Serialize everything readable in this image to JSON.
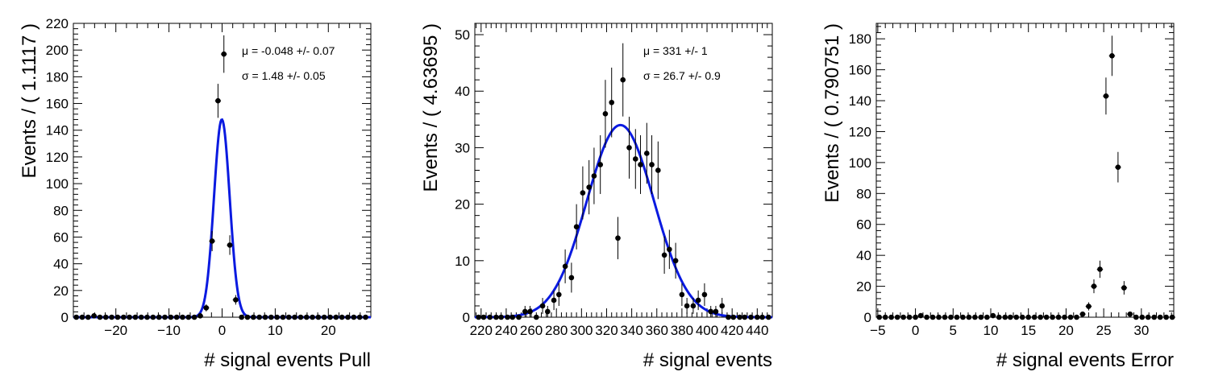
{
  "chart_data": [
    {
      "type": "scatter",
      "xlabel": "# signal events Pull",
      "ylabel": "Events / ( 1.1117 )",
      "xlim": [
        -28,
        28
      ],
      "ylim": [
        0,
        220
      ],
      "xticks": [
        -20,
        -10,
        0,
        10,
        20
      ],
      "yticks": [
        0,
        20,
        40,
        60,
        80,
        100,
        120,
        140,
        160,
        180,
        200,
        220
      ],
      "annotations": [
        "μ = -0.048 +/- 0.07",
        "σ =  1.48 +/- 0.05"
      ],
      "fit": {
        "kind": "gaussian",
        "mu": -0.048,
        "sigma": 1.48,
        "amplitude": 148,
        "color": "#0a1ae0"
      },
      "x": [
        -27.44,
        -26.33,
        -25.22,
        -24.11,
        -23.0,
        -21.89,
        -20.78,
        -19.66,
        -18.55,
        -17.44,
        -16.33,
        -15.22,
        -14.11,
        -13.0,
        -11.88,
        -10.77,
        -9.66,
        -8.55,
        -7.44,
        -6.33,
        -5.22,
        -4.11,
        -2.99,
        -1.88,
        -0.77,
        0.34,
        1.45,
        2.56,
        3.67,
        4.78,
        5.89,
        7.01,
        8.12,
        9.23,
        10.34,
        11.45,
        12.56,
        13.67,
        14.79,
        15.9,
        17.01,
        18.12,
        19.23,
        20.34,
        21.45,
        22.56,
        23.68,
        24.79,
        25.9,
        27.01
      ],
      "y": [
        0,
        0,
        0,
        1,
        0,
        0,
        0,
        0,
        0,
        0,
        0,
        0,
        0,
        0,
        0,
        0,
        0,
        0,
        0,
        0,
        0,
        1,
        7,
        57,
        162,
        197,
        54,
        13,
        0,
        0,
        0,
        0,
        0,
        0,
        0,
        0,
        0,
        0,
        0,
        0,
        0,
        0,
        0,
        0,
        0,
        0,
        0,
        0,
        0,
        0
      ]
    },
    {
      "type": "scatter",
      "xlabel": "# signal events",
      "ylabel": "Events / ( 4.63695 )",
      "xlim": [
        215,
        452
      ],
      "ylim": [
        0,
        52
      ],
      "xticks": [
        220,
        240,
        260,
        280,
        300,
        320,
        340,
        360,
        380,
        400,
        420,
        440
      ],
      "yticks": [
        0,
        10,
        20,
        30,
        40,
        50
      ],
      "annotations": [
        "μ =  331 +/- 1",
        "σ =  26.7 +/- 0.9"
      ],
      "fit": {
        "kind": "gaussian",
        "mu": 331,
        "sigma": 26.7,
        "amplitude": 34,
        "color": "#0a1ae0"
      },
      "x": [
        218,
        222,
        227,
        232,
        236,
        241,
        245,
        250,
        255,
        259,
        264,
        269,
        273,
        278,
        282,
        287,
        292,
        296,
        301,
        306,
        310,
        315,
        319,
        324,
        329,
        333,
        338,
        343,
        347,
        352,
        356,
        361,
        366,
        370,
        375,
        380,
        384,
        389,
        393,
        398,
        403,
        407,
        412,
        417,
        421,
        426,
        430,
        435,
        440,
        444,
        449
      ],
      "y": [
        0,
        0,
        0,
        0,
        0,
        0,
        0,
        0,
        1,
        1,
        0,
        2,
        1,
        3,
        4,
        9,
        7,
        16,
        22,
        23,
        25,
        27,
        36,
        38,
        14,
        42,
        30,
        28,
        27,
        29,
        27,
        26,
        11,
        12,
        10,
        4,
        2,
        2,
        3,
        4,
        1,
        1,
        2,
        0,
        0,
        0,
        0,
        0,
        0,
        0,
        0
      ]
    },
    {
      "type": "scatter",
      "xlabel": "# signal events Error",
      "ylabel": "Events / ( 0.790751 )",
      "xlim": [
        -5.2,
        34.3
      ],
      "ylim": [
        0,
        190
      ],
      "xticks": [
        -5,
        0,
        5,
        10,
        15,
        20,
        25,
        30
      ],
      "yticks": [
        0,
        20,
        40,
        60,
        80,
        100,
        120,
        140,
        160,
        180
      ],
      "annotations": [],
      "x": [
        -4.8,
        -4.0,
        -3.2,
        -2.4,
        -1.6,
        -0.8,
        0.0,
        0.7,
        1.5,
        2.3,
        3.1,
        3.9,
        4.7,
        5.5,
        6.3,
        7.1,
        7.9,
        8.7,
        9.5,
        10.3,
        11.1,
        11.9,
        12.6,
        13.4,
        14.2,
        15.0,
        15.8,
        16.6,
        17.4,
        18.2,
        19.0,
        19.8,
        20.6,
        21.4,
        22.2,
        23.0,
        23.7,
        24.5,
        25.3,
        26.1,
        26.9,
        27.7,
        28.5,
        29.3,
        30.1,
        30.9,
        31.7,
        32.5,
        33.3,
        34.1
      ],
      "y": [
        0,
        0,
        0,
        0,
        0,
        0,
        0,
        1,
        0,
        0,
        0,
        0,
        0,
        0,
        0,
        0,
        0,
        0,
        0,
        1,
        0,
        0,
        0,
        0,
        0,
        0,
        0,
        0,
        0,
        0,
        0,
        0,
        0,
        0,
        2,
        7,
        20,
        31,
        143,
        169,
        97,
        19,
        2,
        0,
        0,
        0,
        0,
        0,
        0,
        0
      ]
    }
  ]
}
